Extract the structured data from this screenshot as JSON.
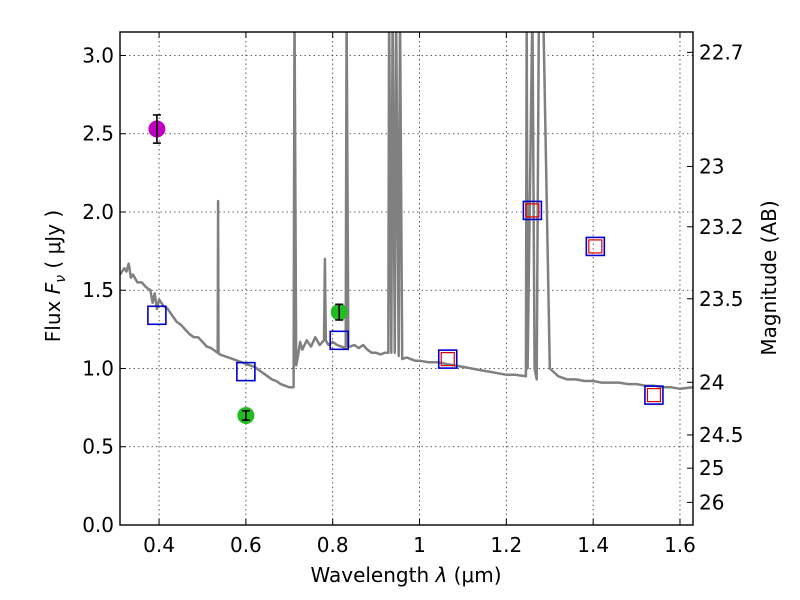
{
  "chart_data": {
    "type": "scatter",
    "title": "",
    "xlabel": "Wavelength  λ (μm)",
    "ylabel": "Flux  F_ν  ( μJy )",
    "ylabel_parts": {
      "pre": "Flux  ",
      "sym": "F",
      "sub": "ν",
      "post": "  ( μJy )"
    },
    "xlabel_parts": {
      "pre": "Wavelength  ",
      "sym": "λ",
      "post": " (μm)"
    },
    "y2label": "Magnitude (AB)",
    "xlim": [
      0.31,
      1.63
    ],
    "ylim": [
      0.0,
      3.15
    ],
    "grid": true,
    "x_ticks": [
      0.4,
      0.6,
      0.8,
      1.0,
      1.2,
      1.4,
      1.6
    ],
    "x_tick_labels": [
      "0.4",
      "0.6",
      "0.8",
      "1",
      "1.2",
      "1.4",
      "1.6"
    ],
    "y_ticks": [
      0.0,
      0.5,
      1.0,
      1.5,
      2.0,
      2.5,
      3.0
    ],
    "y_tick_labels": [
      "0.0",
      "0.5",
      "1.0",
      "1.5",
      "2.0",
      "2.5",
      "3.0"
    ],
    "mag_ticks": [
      22.7,
      23,
      23.2,
      23.5,
      24,
      24.5,
      25,
      26
    ],
    "mag_tick_labels": [
      "22.7",
      "23",
      "23.2",
      "23.5",
      "24",
      "24.5",
      "25",
      "26"
    ],
    "template_spectrum": {
      "name": "template SED",
      "color": "#808080",
      "points": [
        [
          0.31,
          1.6
        ],
        [
          0.32,
          1.64
        ],
        [
          0.325,
          1.62
        ],
        [
          0.33,
          1.67
        ],
        [
          0.335,
          1.58
        ],
        [
          0.34,
          1.6
        ],
        [
          0.35,
          1.55
        ],
        [
          0.36,
          1.55
        ],
        [
          0.37,
          1.52
        ],
        [
          0.38,
          1.5
        ],
        [
          0.385,
          1.42
        ],
        [
          0.39,
          1.48
        ],
        [
          0.395,
          1.38
        ],
        [
          0.4,
          1.44
        ],
        [
          0.41,
          1.4
        ],
        [
          0.42,
          1.38
        ],
        [
          0.43,
          1.34
        ],
        [
          0.44,
          1.3
        ],
        [
          0.45,
          1.28
        ],
        [
          0.46,
          1.25
        ],
        [
          0.47,
          1.22
        ],
        [
          0.48,
          1.2
        ],
        [
          0.49,
          1.2
        ],
        [
          0.5,
          1.17
        ],
        [
          0.51,
          1.14
        ],
        [
          0.52,
          1.13
        ],
        [
          0.53,
          1.11
        ],
        [
          0.535,
          1.1
        ],
        [
          0.536,
          2.07
        ],
        [
          0.537,
          1.1
        ],
        [
          0.54,
          1.09
        ],
        [
          0.55,
          1.08
        ],
        [
          0.56,
          1.07
        ],
        [
          0.57,
          1.06
        ],
        [
          0.58,
          1.05
        ],
        [
          0.59,
          1.04
        ],
        [
          0.6,
          1.03
        ],
        [
          0.61,
          1.02
        ],
        [
          0.62,
          1.01
        ],
        [
          0.63,
          0.99
        ],
        [
          0.64,
          0.97
        ],
        [
          0.65,
          0.95
        ],
        [
          0.66,
          0.93
        ],
        [
          0.67,
          0.92
        ],
        [
          0.68,
          0.9
        ],
        [
          0.69,
          0.89
        ],
        [
          0.7,
          0.88
        ],
        [
          0.71,
          0.88
        ],
        [
          0.712,
          3.3
        ],
        [
          0.716,
          1.02
        ],
        [
          0.72,
          1.08
        ],
        [
          0.725,
          1.17
        ],
        [
          0.73,
          1.12
        ],
        [
          0.74,
          1.18
        ],
        [
          0.75,
          1.14
        ],
        [
          0.76,
          1.2
        ],
        [
          0.77,
          1.15
        ],
        [
          0.78,
          1.18
        ],
        [
          0.782,
          1.7
        ],
        [
          0.784,
          1.18
        ],
        [
          0.79,
          1.15
        ],
        [
          0.8,
          1.17
        ],
        [
          0.81,
          1.15
        ],
        [
          0.82,
          1.14
        ],
        [
          0.83,
          1.13
        ],
        [
          0.832,
          3.3
        ],
        [
          0.836,
          1.14
        ],
        [
          0.84,
          1.14
        ],
        [
          0.85,
          1.15
        ],
        [
          0.86,
          1.13
        ],
        [
          0.87,
          1.15
        ],
        [
          0.88,
          1.12
        ],
        [
          0.89,
          1.1
        ],
        [
          0.9,
          1.1
        ],
        [
          0.91,
          1.09
        ],
        [
          0.92,
          1.1
        ],
        [
          0.928,
          1.1
        ],
        [
          0.93,
          3.3
        ],
        [
          0.935,
          1.1
        ],
        [
          0.938,
          3.3
        ],
        [
          0.943,
          1.1
        ],
        [
          0.946,
          3.3
        ],
        [
          0.952,
          1.08
        ],
        [
          0.955,
          3.3
        ],
        [
          0.96,
          1.06
        ],
        [
          0.97,
          1.07
        ],
        [
          0.98,
          1.06
        ],
        [
          0.99,
          1.05
        ],
        [
          1.0,
          1.05
        ],
        [
          1.02,
          1.04
        ],
        [
          1.04,
          1.04
        ],
        [
          1.06,
          1.03
        ],
        [
          1.08,
          1.02
        ],
        [
          1.1,
          1.01
        ],
        [
          1.12,
          1.0
        ],
        [
          1.14,
          0.99
        ],
        [
          1.16,
          0.98
        ],
        [
          1.18,
          0.97
        ],
        [
          1.2,
          0.96
        ],
        [
          1.22,
          0.96
        ],
        [
          1.245,
          0.95
        ],
        [
          1.247,
          3.3
        ],
        [
          1.249,
          1.0
        ],
        [
          1.26,
          3.3
        ],
        [
          1.265,
          1.0
        ],
        [
          1.27,
          0.93
        ],
        [
          1.275,
          3.3
        ],
        [
          1.285,
          3.3
        ],
        [
          1.3,
          1.0
        ],
        [
          1.32,
          0.95
        ],
        [
          1.34,
          0.93
        ],
        [
          1.36,
          0.93
        ],
        [
          1.38,
          0.92
        ],
        [
          1.4,
          0.92
        ],
        [
          1.42,
          0.91
        ],
        [
          1.44,
          0.91
        ],
        [
          1.46,
          0.91
        ],
        [
          1.48,
          0.9
        ],
        [
          1.5,
          0.9
        ],
        [
          1.52,
          0.89
        ],
        [
          1.54,
          0.89
        ],
        [
          1.56,
          0.88
        ],
        [
          1.58,
          0.88
        ],
        [
          1.6,
          0.87
        ],
        [
          1.63,
          0.88
        ]
      ]
    },
    "model_photometry": [
      {
        "x": 0.395,
        "y": 1.34
      },
      {
        "x": 0.6,
        "y": 0.98
      },
      {
        "x": 0.815,
        "y": 1.18
      },
      {
        "x": 1.065,
        "y": 1.06
      },
      {
        "x": 1.26,
        "y": 2.01
      },
      {
        "x": 1.405,
        "y": 1.78
      },
      {
        "x": 1.54,
        "y": 0.83
      }
    ],
    "observed_photometry": [
      {
        "x": 1.26,
        "y": 2.01
      },
      {
        "x": 1.405,
        "y": 1.78
      },
      {
        "x": 1.065,
        "y": 1.06
      },
      {
        "x": 1.54,
        "y": 0.83
      }
    ],
    "observed_points": [
      {
        "x": 0.395,
        "y": 2.53,
        "err": 0.09,
        "color": "#c000c0"
      },
      {
        "x": 0.6,
        "y": 0.7,
        "err": 0.03,
        "color": "#22bb22"
      },
      {
        "x": 0.815,
        "y": 1.36,
        "err": 0.05,
        "color": "#22bb22"
      }
    ],
    "colors": {
      "model_box": "#0000cc",
      "observed_box": "#dd0000",
      "grid": "#333333"
    }
  }
}
